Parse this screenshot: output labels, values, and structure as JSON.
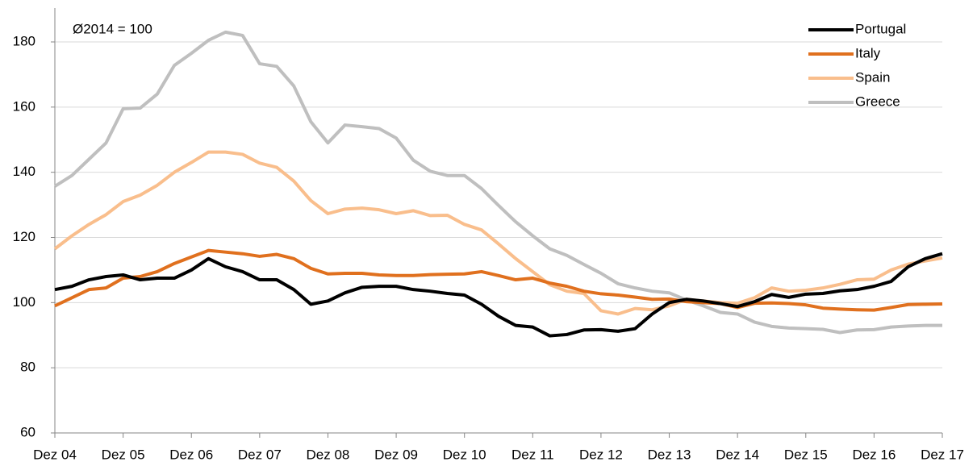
{
  "chart_data": {
    "type": "line",
    "annotation": "Ø2014 = 100",
    "categories": [
      "Dez 04",
      null,
      null,
      null,
      "Dez 05",
      null,
      null,
      null,
      "Dez 06",
      null,
      null,
      null,
      "Dez 07",
      null,
      null,
      null,
      "Dez 08",
      null,
      null,
      null,
      "Dez 09",
      null,
      null,
      null,
      "Dez 10",
      null,
      null,
      null,
      "Dez 11",
      null,
      null,
      null,
      "Dez 12",
      null,
      null,
      null,
      "Dez 13",
      null,
      null,
      null,
      "Dez 14",
      null,
      null,
      null,
      "Dez 15",
      null,
      null,
      null,
      "Dez 16",
      null,
      null,
      null,
      "Dez 17"
    ],
    "series": [
      {
        "name": "Portugal",
        "color": "#000000",
        "values": [
          104,
          105,
          107,
          108,
          108.5,
          107,
          107.5,
          107.5,
          110,
          113.5,
          111,
          109.5,
          107,
          107,
          104,
          99.5,
          100.5,
          103,
          104.7,
          105,
          105,
          104,
          103.5,
          102.8,
          102.3,
          99.5,
          95.8,
          93,
          92.5,
          89.8,
          90.2,
          91.6,
          91.7,
          91.2,
          92,
          96.5,
          100,
          101,
          100.5,
          99.7,
          98.8,
          100.3,
          102.5,
          101.6,
          102.6,
          102.8,
          103.6,
          104,
          105,
          106.5,
          111,
          113.5,
          115
        ]
      },
      {
        "name": "Italy",
        "color": "#E0701E",
        "values": [
          99,
          101.5,
          104,
          104.5,
          107.5,
          108,
          109.5,
          112,
          114,
          116,
          115.5,
          115,
          114.2,
          114.8,
          113.5,
          110.5,
          108.8,
          109,
          109,
          108.5,
          108.3,
          108.3,
          108.6,
          108.7,
          108.8,
          109.5,
          108.3,
          107,
          107.5,
          106,
          105,
          103.5,
          102.7,
          102.3,
          101.7,
          101,
          101.1,
          100.3,
          100,
          99.7,
          98.5,
          99.8,
          99.9,
          99.7,
          99.3,
          98.3,
          98,
          97.8,
          97.7,
          98.5,
          99.4,
          99.5,
          99.6
        ]
      },
      {
        "name": "Spain",
        "color": "#F9BE8C",
        "values": [
          116.5,
          120.5,
          124,
          127,
          131,
          133,
          136,
          140,
          143,
          146.2,
          146.2,
          145.5,
          142.8,
          141.5,
          137.3,
          131.3,
          127.3,
          128.7,
          129,
          128.5,
          127.3,
          128.2,
          126.7,
          126.8,
          124,
          122.3,
          118,
          113.5,
          109.5,
          105.5,
          103.5,
          102.8,
          97.5,
          96.5,
          98.2,
          97.8,
          99,
          101,
          100.5,
          100,
          99.8,
          101.5,
          104.5,
          103.5,
          103.8,
          104.5,
          105.6,
          107,
          107.2,
          110,
          111.8,
          112.8,
          113.7
        ]
      },
      {
        "name": "Greece",
        "color": "#BFBFBF",
        "values": [
          135.7,
          139,
          144,
          149,
          159.5,
          159.7,
          164,
          172.8,
          176.5,
          180.5,
          183,
          182,
          173.3,
          172.5,
          166.5,
          155.5,
          149,
          154.5,
          154,
          153.4,
          150.5,
          143.7,
          140.3,
          139,
          139,
          135,
          129.8,
          124.8,
          120.5,
          116.5,
          114.5,
          111.7,
          109,
          105.8,
          104.5,
          103.5,
          103,
          100.8,
          99,
          97,
          96.5,
          94,
          92.7,
          92.2,
          92,
          91.8,
          90.8,
          91.6,
          91.7,
          92.5,
          92.8,
          93,
          93
        ]
      }
    ],
    "ylim": [
      60,
      180
    ],
    "yticks": [
      60,
      80,
      100,
      120,
      140,
      160,
      180
    ],
    "grid": true,
    "legend": "top-right"
  }
}
